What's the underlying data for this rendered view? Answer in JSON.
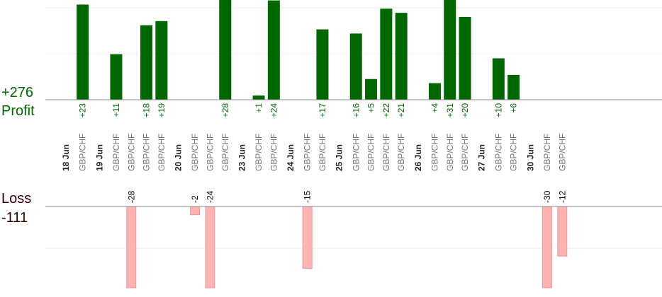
{
  "labels": {
    "total_profit": "+276",
    "profit_caption": "Profit",
    "loss_caption": "Loss",
    "total_loss": "-111"
  },
  "colors": {
    "profit": "#006600",
    "profit_text": "#006600",
    "loss_fill": "#ffb3b3",
    "loss_stroke": "#e59a9a",
    "loss_caption": "#330000",
    "gridline": "#eeeeee",
    "axis": "#888888"
  },
  "chart_data": {
    "type": "bar",
    "title": "",
    "xlabel": "",
    "ylabel": "",
    "grid": true,
    "dates": [
      "18 Jun",
      "19 Jun",
      "20 Jun",
      "23 Jun",
      "24 Jun",
      "25 Jun",
      "26 Jun",
      "27 Jun",
      "30 Jun"
    ],
    "trades": [
      {
        "date": "18 Jun",
        "pair": "GBP/CHF",
        "value": 23
      },
      {
        "date": "19 Jun",
        "pair": "GBP/CHF",
        "value": 11
      },
      {
        "date": "19 Jun",
        "pair": "GBP/CHF",
        "value": -28
      },
      {
        "date": "19 Jun",
        "pair": "GBP/CHF",
        "value": 18
      },
      {
        "date": "19 Jun",
        "pair": "GBP/CHF",
        "value": 19
      },
      {
        "date": "20 Jun",
        "pair": "GBP/CHF",
        "value": -2
      },
      {
        "date": "20 Jun",
        "pair": "GBP/CHF",
        "value": -24
      },
      {
        "date": "20 Jun",
        "pair": "GBP/CHF",
        "value": 28
      },
      {
        "date": "23 Jun",
        "pair": "GBP/CHF",
        "value": 1
      },
      {
        "date": "23 Jun",
        "pair": "GBP/CHF",
        "value": 24
      },
      {
        "date": "24 Jun",
        "pair": "GBP/CHF",
        "value": -15
      },
      {
        "date": "24 Jun",
        "pair": "GBP/CHF",
        "value": 17
      },
      {
        "date": "25 Jun",
        "pair": "GBP/CHF",
        "value": 16
      },
      {
        "date": "25 Jun",
        "pair": "GBP/CHF",
        "value": 5
      },
      {
        "date": "25 Jun",
        "pair": "GBP/CHF",
        "value": 22
      },
      {
        "date": "25 Jun",
        "pair": "GBP/CHF",
        "value": 21
      },
      {
        "date": "26 Jun",
        "pair": "GBP/CHF",
        "value": 4
      },
      {
        "date": "26 Jun",
        "pair": "GBP/CHF",
        "value": 31
      },
      {
        "date": "26 Jun",
        "pair": "GBP/CHF",
        "value": 20
      },
      {
        "date": "27 Jun",
        "pair": "GBP/CHF",
        "value": 10
      },
      {
        "date": "27 Jun",
        "pair": "GBP/CHF",
        "value": 6
      },
      {
        "date": "30 Jun",
        "pair": "GBP/CHF",
        "value": -30
      },
      {
        "date": "30 Jun",
        "pair": "GBP/CHF",
        "value": -12
      }
    ]
  }
}
